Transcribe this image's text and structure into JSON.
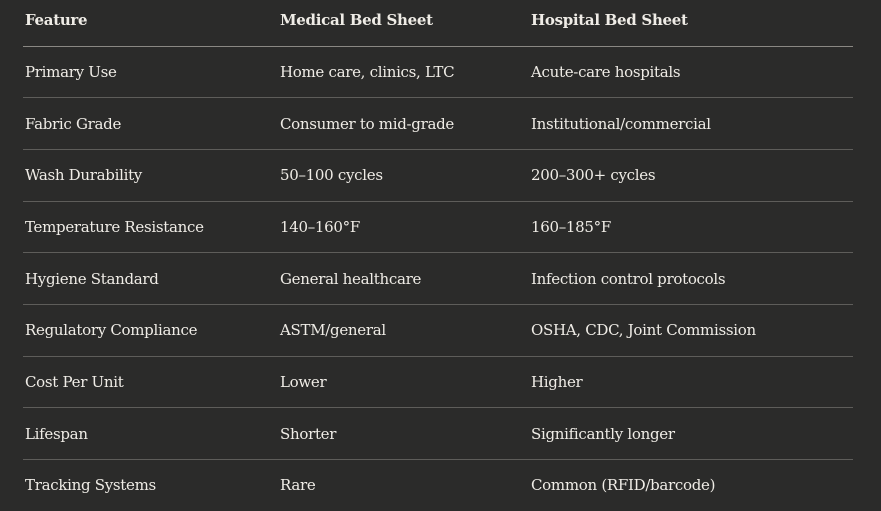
{
  "table": {
    "headers": [
      "Feature",
      "Medical Bed Sheet",
      "Hospital Bed Sheet"
    ],
    "rows": [
      [
        "Primary Use",
        "Home care, clinics, LTC",
        "Acute-care hospitals"
      ],
      [
        "Fabric Grade",
        "Consumer to mid-grade",
        "Institutional/commercial"
      ],
      [
        "Wash Durability",
        "50–100 cycles",
        "200–300+ cycles"
      ],
      [
        "Temperature Resistance",
        "140–160°F",
        "160–185°F"
      ],
      [
        "Hygiene Standard",
        "General healthcare",
        "Infection control protocols"
      ],
      [
        "Regulatory Compliance",
        "ASTM/general",
        "OSHA, CDC, Joint Commission"
      ],
      [
        "Cost Per Unit",
        "Lower",
        "Higher"
      ],
      [
        "Lifespan",
        "Shorter",
        "Significantly longer"
      ],
      [
        "Tracking Systems",
        "Rare",
        "Common (RFID/barcode)"
      ]
    ]
  }
}
